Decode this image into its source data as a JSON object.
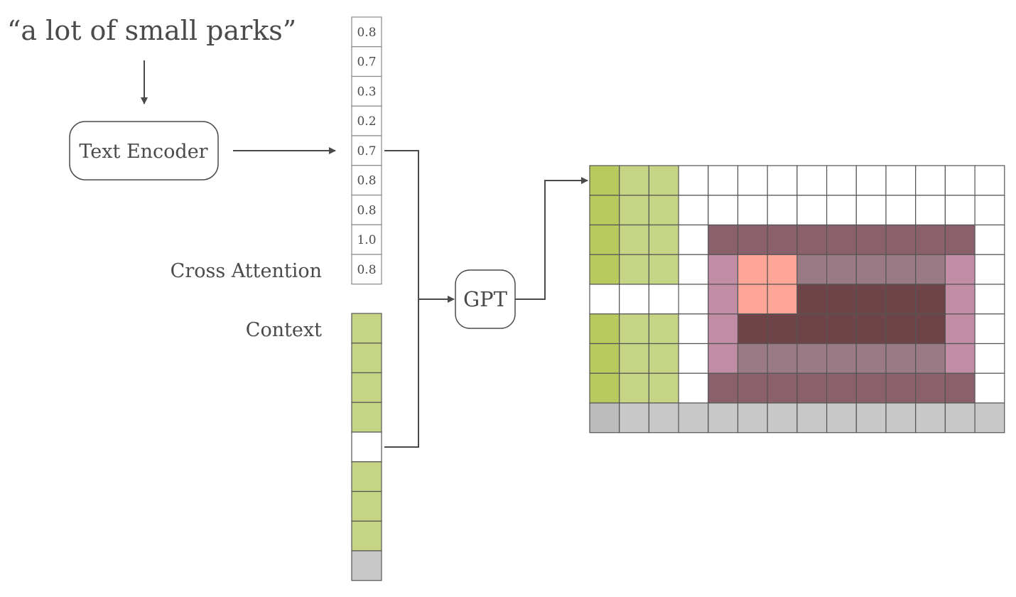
{
  "prompt_text": "“a lot of small parks”",
  "encoder_label": "Text Encoder",
  "gpt_label": "GPT",
  "cross_attention_label": "Cross Attention",
  "context_label": "Context",
  "embedding_values": [
    "0.8",
    "0.7",
    "0.3",
    "0.2",
    "0.7",
    "0.8",
    "0.8",
    "1.0",
    "0.8"
  ],
  "colors": {
    "line": "#4a4a4a",
    "grid_stroke": "#555555",
    "key": {
      "G": "#b8c95e",
      "L": "#c5d585",
      "W": "#ffffff",
      "D": "#8a606b",
      "P": "#c08da4",
      "S": "#ffa699",
      "M": "#9a7a85",
      "K": "#6e4448",
      "A": "#bbbbbb",
      "B": "#c8c8c8"
    }
  },
  "context_cells": [
    "L",
    "L",
    "L",
    "L",
    "W",
    "L",
    "L",
    "L",
    "B"
  ],
  "grid": [
    [
      "G",
      "L",
      "L",
      "W",
      "W",
      "W",
      "W",
      "W",
      "W",
      "W",
      "W",
      "W",
      "W",
      "W"
    ],
    [
      "G",
      "L",
      "L",
      "W",
      "W",
      "W",
      "W",
      "W",
      "W",
      "W",
      "W",
      "W",
      "W",
      "W"
    ],
    [
      "G",
      "L",
      "L",
      "W",
      "D",
      "D",
      "D",
      "D",
      "D",
      "D",
      "D",
      "D",
      "D",
      "W"
    ],
    [
      "G",
      "L",
      "L",
      "W",
      "P",
      "S",
      "S",
      "M",
      "M",
      "M",
      "M",
      "M",
      "P",
      "W"
    ],
    [
      "W",
      "W",
      "W",
      "W",
      "P",
      "S",
      "S",
      "K",
      "K",
      "K",
      "K",
      "K",
      "P",
      "W"
    ],
    [
      "G",
      "L",
      "L",
      "W",
      "P",
      "K",
      "K",
      "K",
      "K",
      "K",
      "K",
      "K",
      "P",
      "W"
    ],
    [
      "G",
      "L",
      "L",
      "W",
      "P",
      "M",
      "M",
      "M",
      "M",
      "M",
      "M",
      "M",
      "P",
      "W"
    ],
    [
      "G",
      "L",
      "L",
      "W",
      "D",
      "D",
      "D",
      "D",
      "D",
      "D",
      "D",
      "D",
      "D",
      "W"
    ],
    [
      "A",
      "B",
      "B",
      "B",
      "B",
      "B",
      "B",
      "B",
      "B",
      "B",
      "B",
      "B",
      "B",
      "B"
    ]
  ]
}
